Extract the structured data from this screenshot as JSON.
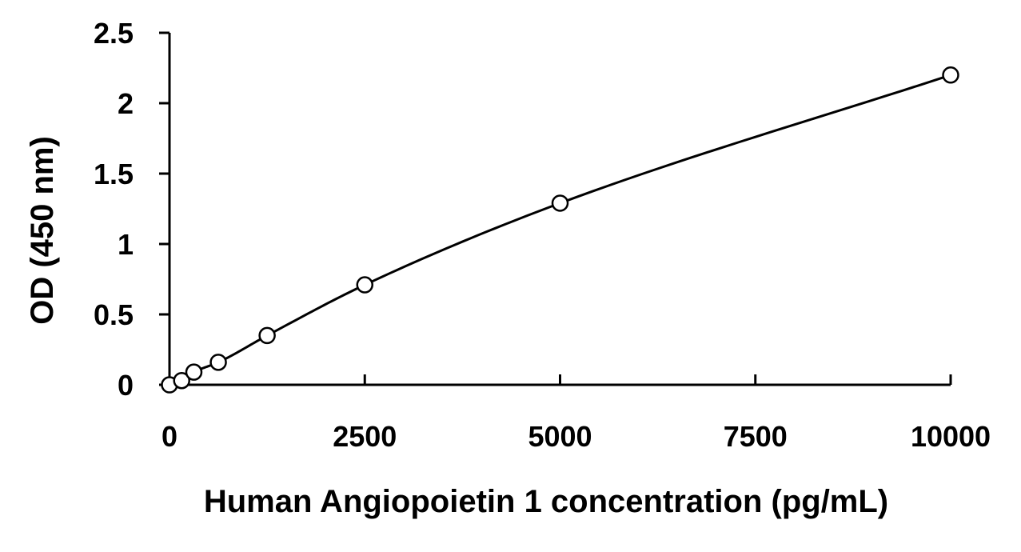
{
  "chart_data": {
    "type": "scatter",
    "title": "",
    "xlabel": "Human Angiopoietin 1 concentration (pg/mL)",
    "ylabel": "OD (450 nm)",
    "xlim": [
      0,
      10000
    ],
    "ylim": [
      0,
      2.5
    ],
    "x_ticks": [
      0,
      2500,
      5000,
      7500,
      10000
    ],
    "x_tick_labels": [
      "0",
      "2500",
      "5000",
      "7500",
      "10000"
    ],
    "y_ticks": [
      0,
      0.5,
      1,
      1.5,
      2,
      2.5
    ],
    "y_tick_labels": [
      "0",
      "0.5",
      "1",
      "1.5",
      "2",
      "2.5"
    ],
    "grid": false,
    "legend": "none",
    "series": [
      {
        "x": [
          0,
          156,
          312,
          625,
          1250,
          2500,
          5000,
          10000
        ],
        "y": [
          0.0,
          0.03,
          0.09,
          0.16,
          0.35,
          0.71,
          1.29,
          2.2
        ],
        "marker": "open-circle",
        "fit_line": "smooth-curve"
      }
    ],
    "colors": {
      "line": "#000000",
      "marker_stroke": "#000000",
      "marker_fill": "#ffffff"
    }
  }
}
